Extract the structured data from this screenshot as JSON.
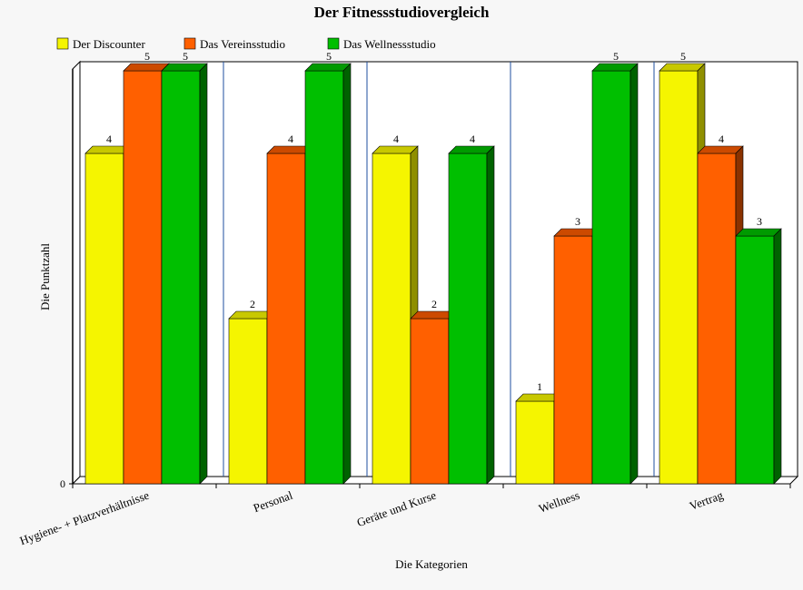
{
  "chart_data": {
    "type": "bar",
    "title": "Der Fitnessstudiovergleich",
    "xlabel": "Die Kategorien",
    "ylabel": "Die Punktzahl",
    "ylim": [
      0,
      5
    ],
    "y_tick_labels": [
      "0"
    ],
    "grid": false,
    "legend_position": "top-left",
    "categories": [
      "Hygiene- + Platzverhältnisse",
      "Personal",
      "Geräte und Kurse",
      "Wellness",
      "Vertrag"
    ],
    "series": [
      {
        "name": "Der Discounter",
        "values": [
          4,
          2,
          4,
          1,
          5
        ],
        "color": "#f5f500",
        "top_color": "#c8c800",
        "side_color": "#8f8f00"
      },
      {
        "name": "Das Vereinsstudio",
        "values": [
          5,
          4,
          2,
          3,
          4
        ],
        "color": "#ff6000",
        "top_color": "#cc4a00",
        "side_color": "#8a3200"
      },
      {
        "name": "Das Wellnessstudio",
        "values": [
          5,
          5,
          4,
          5,
          3
        ],
        "color": "#00bf00",
        "top_color": "#009a00",
        "side_color": "#006200"
      }
    ]
  }
}
